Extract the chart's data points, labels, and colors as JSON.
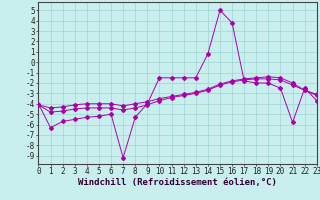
{
  "x": [
    0,
    1,
    2,
    3,
    4,
    5,
    6,
    7,
    8,
    9,
    10,
    11,
    12,
    13,
    14,
    15,
    16,
    17,
    18,
    19,
    20,
    21,
    22,
    23
  ],
  "line1": [
    -4.0,
    -6.3,
    -5.7,
    -5.5,
    -5.3,
    -5.2,
    -5.0,
    -9.2,
    -5.3,
    -4.0,
    -1.5,
    -1.5,
    -1.5,
    -1.5,
    0.8,
    5.0,
    3.8,
    -1.8,
    -2.0,
    -2.0,
    -2.5,
    -5.8,
    -2.5,
    -3.7
  ],
  "line2": [
    -4.1,
    -4.8,
    -4.7,
    -4.5,
    -4.4,
    -4.4,
    -4.4,
    -4.6,
    -4.4,
    -4.1,
    -3.7,
    -3.4,
    -3.2,
    -3.0,
    -2.7,
    -2.2,
    -1.9,
    -1.7,
    -1.6,
    -1.6,
    -1.7,
    -2.2,
    -2.7,
    -3.2
  ],
  "line3": [
    -4.1,
    -4.4,
    -4.3,
    -4.1,
    -4.0,
    -4.0,
    -4.0,
    -4.2,
    -4.0,
    -3.8,
    -3.5,
    -3.3,
    -3.1,
    -2.9,
    -2.6,
    -2.1,
    -1.8,
    -1.6,
    -1.5,
    -1.4,
    -1.5,
    -2.0,
    -2.7,
    -3.1
  ],
  "bg_color": "#c9eeee",
  "grid_color": "#a0d4d4",
  "line_color": "#aa00aa",
  "xlabel": "Windchill (Refroidissement éolien,°C)",
  "xlabel_fontsize": 6.5,
  "tick_fontsize": 5.5,
  "ylim": [
    -9.8,
    5.8
  ],
  "xlim": [
    0,
    23
  ],
  "yticks": [
    5,
    4,
    3,
    2,
    1,
    0,
    -1,
    -2,
    -3,
    -4,
    -5,
    -6,
    -7,
    -8,
    -9
  ],
  "xticks": [
    0,
    1,
    2,
    3,
    4,
    5,
    6,
    7,
    8,
    9,
    10,
    11,
    12,
    13,
    14,
    15,
    16,
    17,
    18,
    19,
    20,
    21,
    22,
    23
  ]
}
